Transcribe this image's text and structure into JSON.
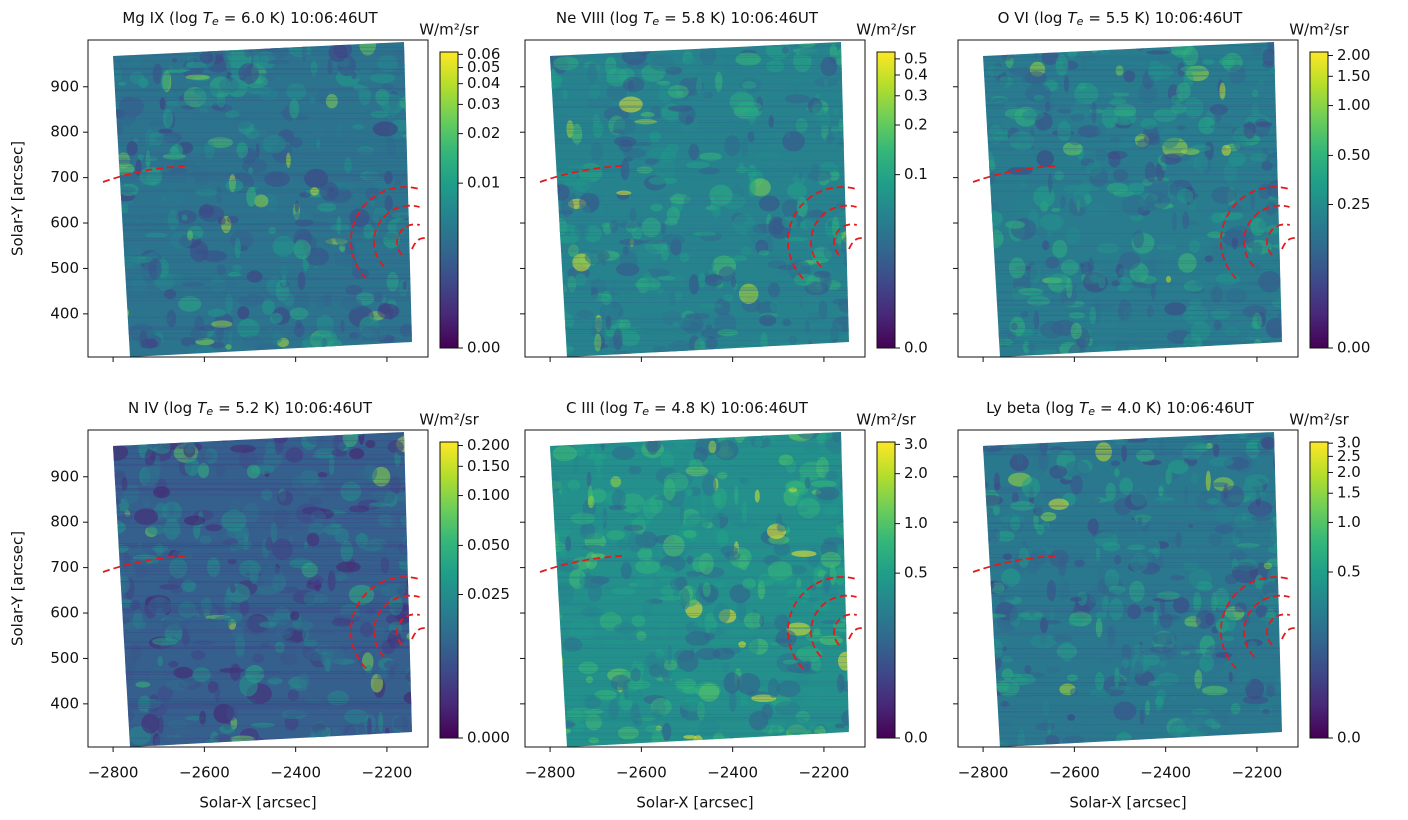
{
  "chart_data": [
    {
      "type": "image",
      "title": {
        "text": "Mg IX (log",
        "symbol": "T",
        "subscript": "e",
        "rest": "= 6.0 K) 10:06:46UT"
      },
      "ylabel": "Solar-Y [arcsec]",
      "xlim": [
        -2855,
        -2110
      ],
      "ylim": [
        305,
        1003
      ],
      "xticks": [
        -2800,
        -2600,
        -2400,
        -2200
      ],
      "yticks": [
        400,
        500,
        600,
        700,
        800,
        900
      ],
      "xtick_labels": false,
      "ytick_labels": true,
      "colormap": "viridis",
      "colorbar": {
        "label": "W/m²/sr",
        "scale": "asinh",
        "clim": [
          0,
          0.062
        ],
        "ticks": [
          {
            "value": 0,
            "label": "0.00"
          },
          0.01,
          0.02,
          0.03,
          0.04,
          0.05,
          0.06
        ]
      }
    },
    {
      "type": "image",
      "title": {
        "text": "Ne VIII (log",
        "symbol": "T",
        "subscript": "e",
        "rest": "= 5.8 K) 10:06:46UT"
      },
      "xlim": [
        -2855,
        -2110
      ],
      "ylim": [
        305,
        1003
      ],
      "xticks": [
        -2800,
        -2600,
        -2400,
        -2200
      ],
      "yticks": [
        400,
        500,
        600,
        700,
        800,
        900
      ],
      "xtick_labels": false,
      "ytick_labels": false,
      "colormap": "viridis",
      "colorbar": {
        "label": "W/m²/sr",
        "scale": "asinh",
        "clim": [
          0,
          0.55
        ],
        "ticks": [
          {
            "value": 0,
            "label": "0.0"
          },
          0.1,
          0.2,
          0.3,
          0.4,
          0.5
        ]
      }
    },
    {
      "type": "image",
      "title": {
        "text": "O VI (log",
        "symbol": "T",
        "subscript": "e",
        "rest": "= 5.5 K) 10:06:46UT"
      },
      "xlim": [
        -2855,
        -2110
      ],
      "ylim": [
        305,
        1003
      ],
      "xticks": [
        -2800,
        -2600,
        -2400,
        -2200
      ],
      "yticks": [
        400,
        500,
        600,
        700,
        800,
        900
      ],
      "xtick_labels": false,
      "ytick_labels": false,
      "colormap": "viridis",
      "colorbar": {
        "label": "W/m²/sr",
        "scale": "asinh",
        "clim": [
          0,
          2.1
        ],
        "ticks": [
          {
            "value": 0,
            "label": "0.00"
          },
          0.25,
          {
            "value": 0.5,
            "label": "0.50"
          },
          {
            "value": 1,
            "label": "1.00"
          },
          {
            "value": 1.5,
            "label": "1.50"
          },
          {
            "value": 2,
            "label": "2.00"
          }
        ]
      }
    },
    {
      "type": "image",
      "title": {
        "text": "N IV (log",
        "symbol": "T",
        "subscript": "e",
        "rest": "= 5.2 K) 10:06:46UT"
      },
      "xlabel": "Solar-X [arcsec]",
      "ylabel": "Solar-Y [arcsec]",
      "xlim": [
        -2855,
        -2110
      ],
      "ylim": [
        305,
        1003
      ],
      "xticks": [
        {
          "value": -2800,
          "label": "−2800"
        },
        {
          "value": -2600,
          "label": "−2600"
        },
        {
          "value": -2400,
          "label": "−2400"
        },
        {
          "value": -2200,
          "label": "−2200"
        }
      ],
      "yticks": [
        400,
        500,
        600,
        700,
        800,
        900
      ],
      "xtick_labels": true,
      "ytick_labels": true,
      "colormap": "viridis",
      "colorbar": {
        "label": "W/m²/sr",
        "scale": "asinh",
        "clim": [
          0,
          0.21
        ],
        "ticks": [
          {
            "value": 0,
            "label": "0.000"
          },
          0.025,
          {
            "value": 0.05,
            "label": "0.050"
          },
          {
            "value": 0.1,
            "label": "0.100"
          },
          {
            "value": 0.15,
            "label": "0.150"
          },
          {
            "value": 0.2,
            "label": "0.200"
          }
        ]
      }
    },
    {
      "type": "image",
      "title": {
        "text": "C III (log",
        "symbol": "T",
        "subscript": "e",
        "rest": "= 4.8 K) 10:06:46UT"
      },
      "xlabel": "Solar-X [arcsec]",
      "xlim": [
        -2855,
        -2110
      ],
      "ylim": [
        305,
        1003
      ],
      "xticks": [
        {
          "value": -2800,
          "label": "−2800"
        },
        {
          "value": -2600,
          "label": "−2600"
        },
        {
          "value": -2400,
          "label": "−2400"
        },
        {
          "value": -2200,
          "label": "−2200"
        }
      ],
      "yticks": [
        400,
        500,
        600,
        700,
        800,
        900
      ],
      "xtick_labels": true,
      "ytick_labels": false,
      "colormap": "viridis",
      "colorbar": {
        "label": "W/m²/sr",
        "scale": "asinh",
        "clim": [
          0,
          3.1
        ],
        "ticks": [
          {
            "value": 0,
            "label": "0.0"
          },
          0.5,
          {
            "value": 1,
            "label": "1.0"
          },
          {
            "value": 2,
            "label": "2.0"
          },
          {
            "value": 3,
            "label": "3.0"
          }
        ]
      }
    },
    {
      "type": "image",
      "title": {
        "text": "Ly beta (log",
        "symbol": "T",
        "subscript": "e",
        "rest": "= 4.0 K) 10:06:46UT"
      },
      "xlabel": "Solar-X [arcsec]",
      "xlim": [
        -2855,
        -2110
      ],
      "ylim": [
        305,
        1003
      ],
      "xticks": [
        {
          "value": -2800,
          "label": "−2800"
        },
        {
          "value": -2600,
          "label": "−2600"
        },
        {
          "value": -2400,
          "label": "−2400"
        },
        {
          "value": -2200,
          "label": "−2200"
        }
      ],
      "yticks": [
        400,
        500,
        600,
        700,
        800,
        900
      ],
      "xtick_labels": true,
      "ytick_labels": false,
      "colormap": "viridis",
      "colorbar": {
        "label": "W/m²/sr",
        "scale": "asinh",
        "clim": [
          0,
          3.05
        ],
        "ticks": [
          {
            "value": 0,
            "label": "0.0"
          },
          0.5,
          {
            "value": 1,
            "label": "1.0"
          },
          1.5,
          {
            "value": 2,
            "label": "2.0"
          },
          2.5,
          {
            "value": 3,
            "label": "3.0"
          }
        ]
      }
    }
  ]
}
